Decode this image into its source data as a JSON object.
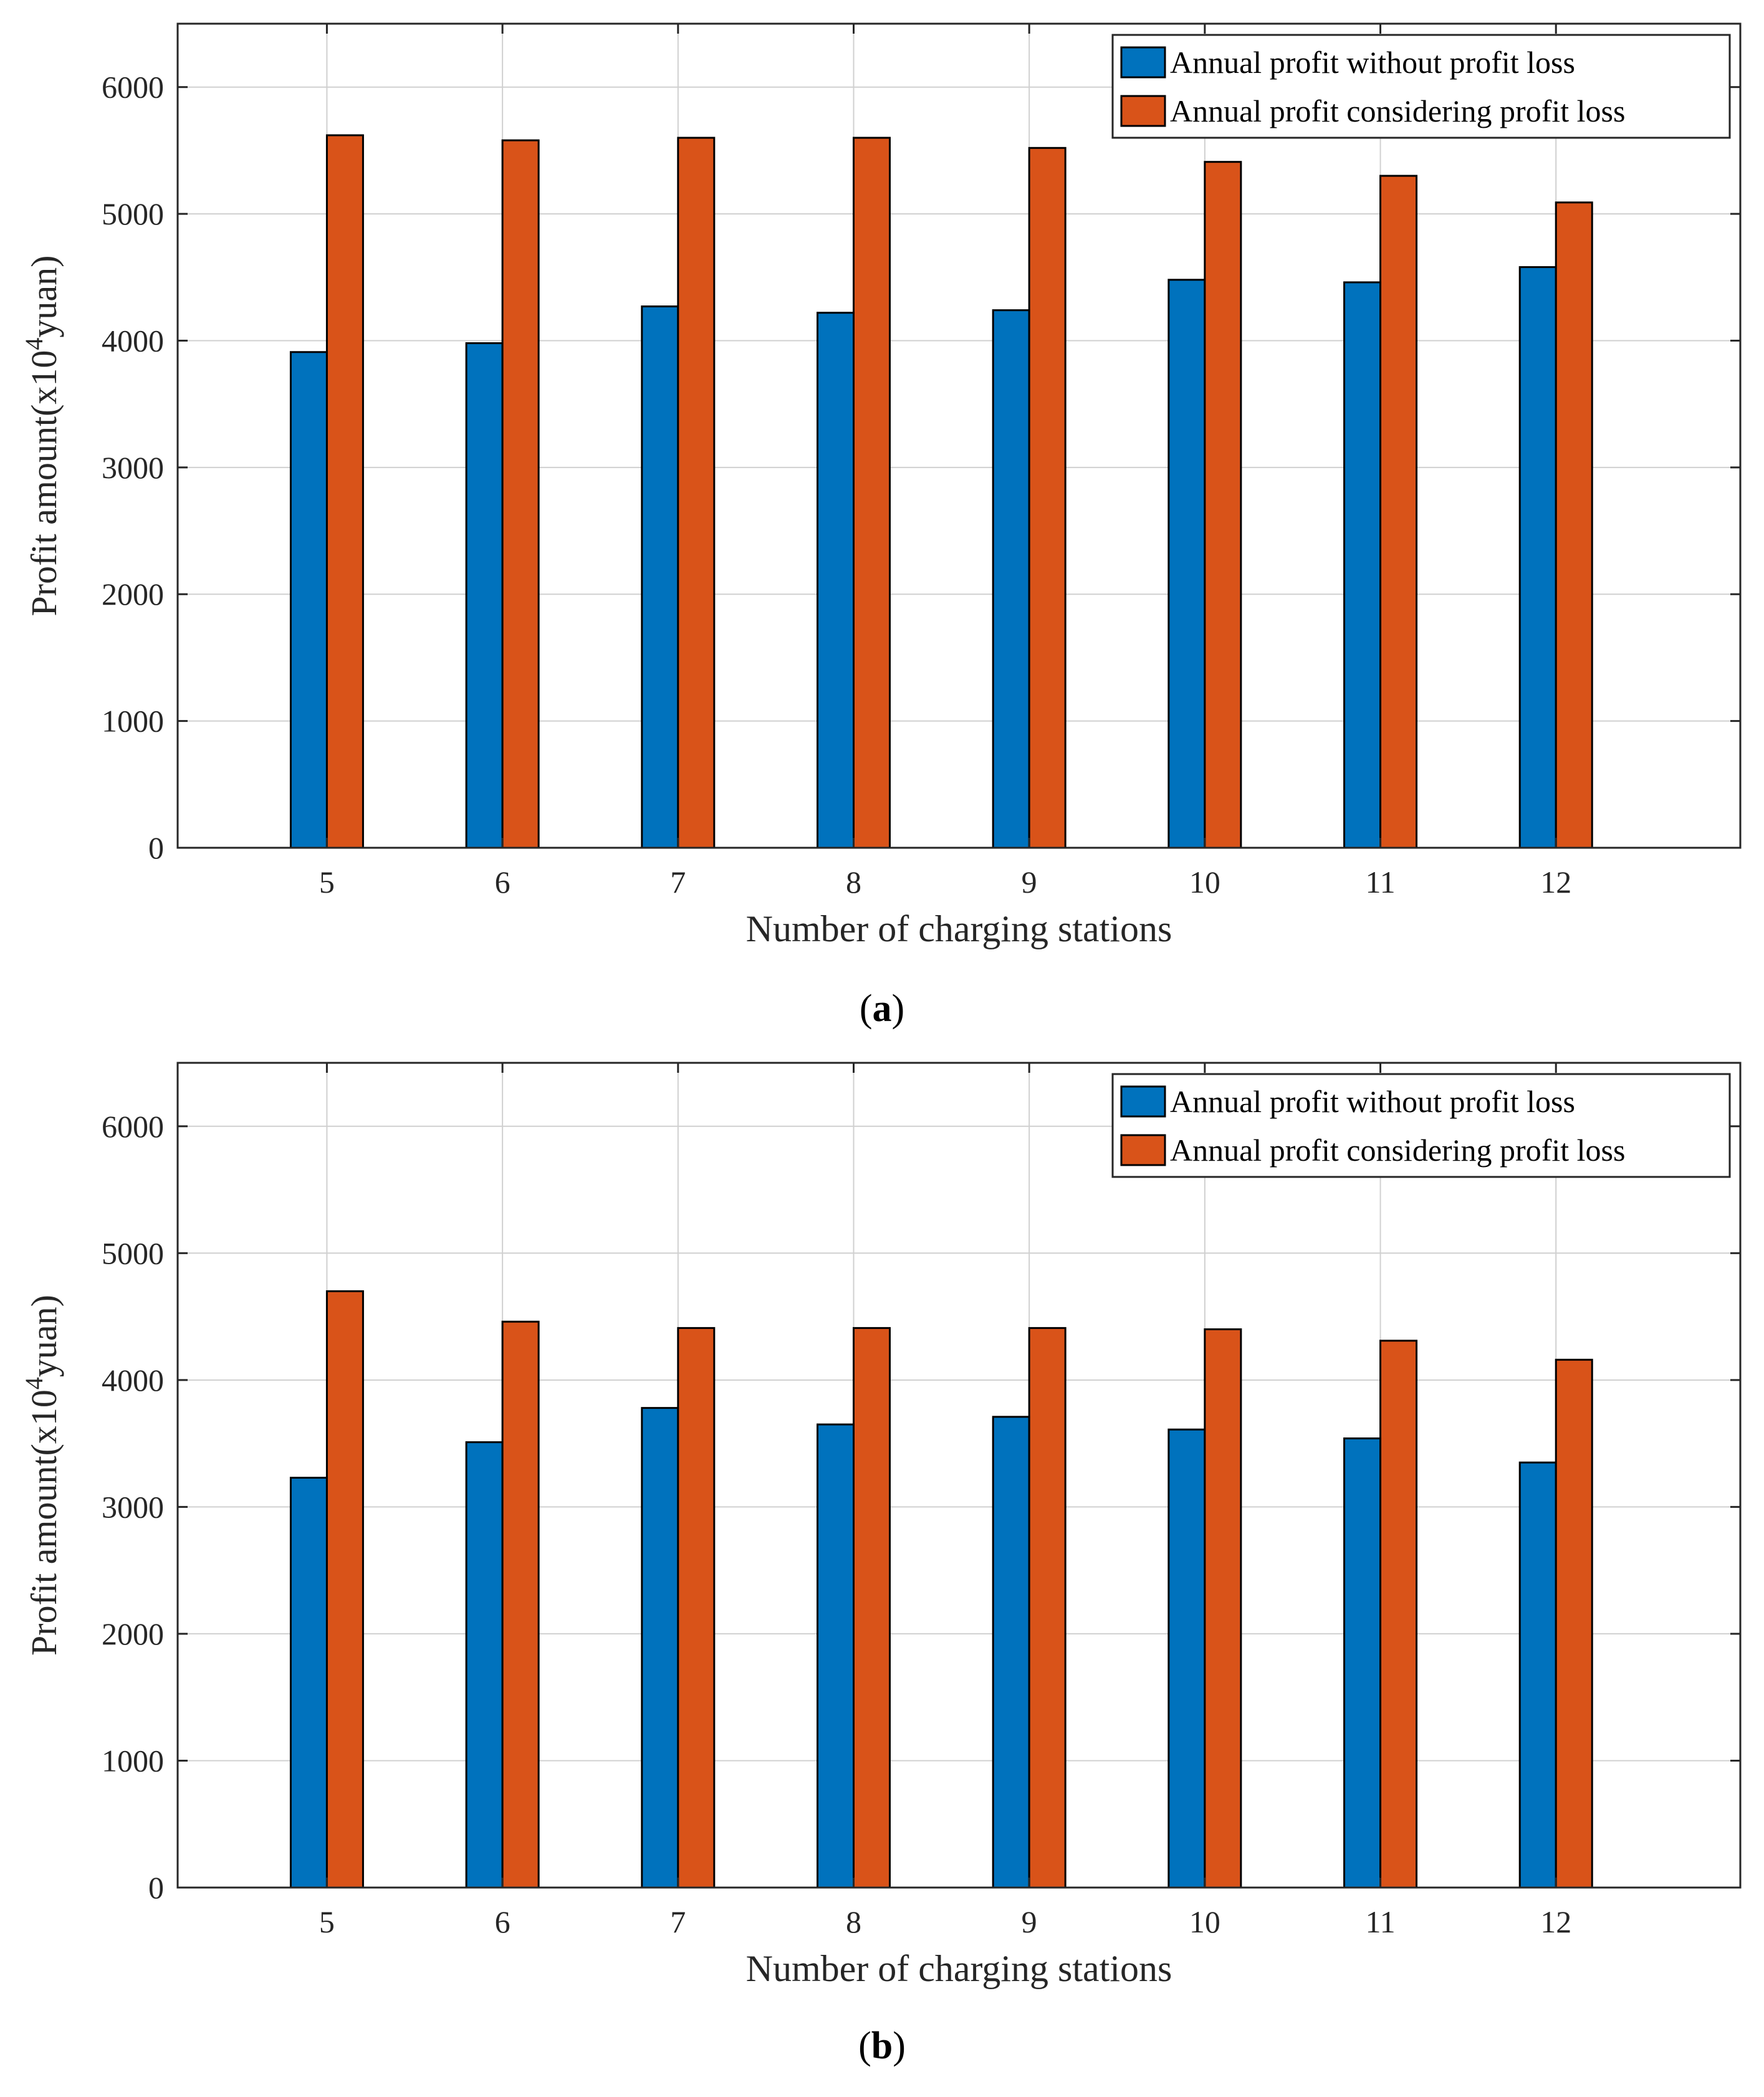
{
  "chart_data": [
    {
      "type": "bar",
      "panel_label": "(a)",
      "panel_letter": "a",
      "categories": [
        "5",
        "6",
        "7",
        "8",
        "9",
        "10",
        "11",
        "12"
      ],
      "series": [
        {
          "name": "Annual profit without profit loss",
          "values": [
            3910,
            3980,
            4270,
            4220,
            4240,
            4480,
            4460,
            4580
          ]
        },
        {
          "name": "Annual profit considering profit loss",
          "values": [
            5620,
            5580,
            5600,
            5600,
            5520,
            5410,
            5300,
            5090
          ]
        }
      ],
      "xlabel": "Number of charging stations",
      "ylabel_prefix": "Profit amount(x10",
      "ylabel_sup": "4",
      "ylabel_suffix": "yuan)",
      "ylim": [
        0,
        6500
      ],
      "yticks": [
        "0",
        "1000",
        "2000",
        "3000",
        "4000",
        "5000",
        "6000"
      ],
      "grid": true,
      "legend_position": "top-right"
    },
    {
      "type": "bar",
      "panel_label": "(b)",
      "panel_letter": "b",
      "categories": [
        "5",
        "6",
        "7",
        "8",
        "9",
        "10",
        "11",
        "12"
      ],
      "series": [
        {
          "name": "Annual profit without profit loss",
          "values": [
            3230,
            3510,
            3780,
            3650,
            3710,
            3610,
            3540,
            3350
          ]
        },
        {
          "name": "Annual profit considering profit loss",
          "values": [
            4700,
            4460,
            4410,
            4410,
            4410,
            4400,
            4310,
            4160
          ]
        }
      ],
      "xlabel": "Number of charging stations",
      "ylabel_prefix": "Profit amount(x10",
      "ylabel_sup": "4",
      "ylabel_suffix": "yuan)",
      "ylim": [
        0,
        6500
      ],
      "yticks": [
        "0",
        "1000",
        "2000",
        "3000",
        "4000",
        "5000",
        "6000"
      ],
      "grid": true,
      "legend_position": "top-right"
    }
  ],
  "colors": {
    "series": [
      "#0072BD",
      "#D95319"
    ],
    "grid": "#d0d0d0",
    "axis": "#262626"
  }
}
